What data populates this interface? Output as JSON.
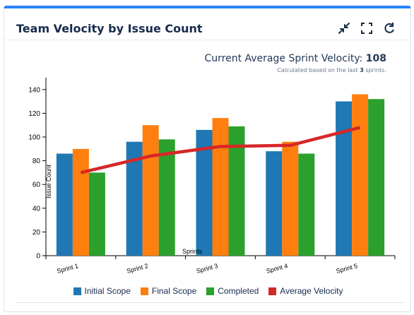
{
  "widget": {
    "title": "Team Velocity by Issue Count",
    "icons": [
      "minimize-icon",
      "fullscreen-icon",
      "refresh-icon"
    ]
  },
  "summary": {
    "velocity_label": "Current Average Sprint Velocity:",
    "velocity_value": "108",
    "calc_prefix": "Calculated based on the last",
    "calc_count": "3",
    "calc_suffix": "sprints."
  },
  "colors": {
    "initial": "#1f77b4",
    "final": "#ff7f0e",
    "completed": "#2ca02c",
    "average": "#d62728",
    "accent": "#2684ff"
  },
  "chart_data": {
    "type": "bar",
    "categories": [
      "Sprint 1",
      "Sprint 2",
      "Sprint 3",
      "Sprint 4",
      "Sprint 5"
    ],
    "series": [
      {
        "name": "Initial Scope",
        "values": [
          86,
          96,
          106,
          88,
          130
        ]
      },
      {
        "name": "Final Scope",
        "values": [
          90,
          110,
          116,
          96,
          136
        ]
      },
      {
        "name": "Completed",
        "values": [
          70,
          98,
          109,
          86,
          132
        ]
      }
    ],
    "line_series": {
      "name": "Average Velocity",
      "values": [
        70,
        84,
        92,
        93,
        108
      ]
    },
    "xlabel": "Sprints",
    "ylabel": "Issue Count",
    "ylim": [
      0,
      150
    ],
    "yticks": [
      0,
      20,
      40,
      60,
      80,
      100,
      120,
      140
    ],
    "grid": false,
    "legend": "bottom"
  }
}
